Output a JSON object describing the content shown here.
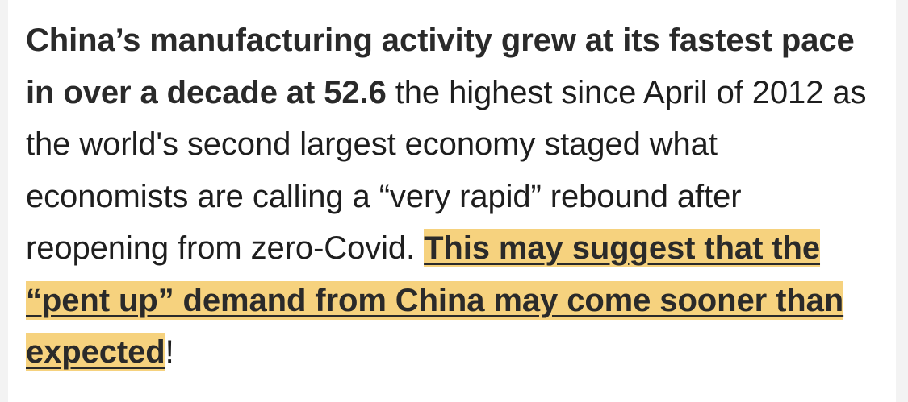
{
  "article": {
    "bold_lead": "China’s manufacturing activity grew at its fastest pace in over a decade at 52.6",
    "body_text": " the highest since April of 2012 as the world's second largest economy staged what economists are calling a “very rapid” rebound after reopening from zero-Covid. ",
    "highlighted_link": "This may suggest that the “pent up” demand from China may come sooner than expected",
    "closing": "!"
  },
  "colors": {
    "highlight": "#f6d27e",
    "text": "#1e1e1e",
    "page_background": "#ffffff",
    "outer_background": "#f3f3f3"
  }
}
